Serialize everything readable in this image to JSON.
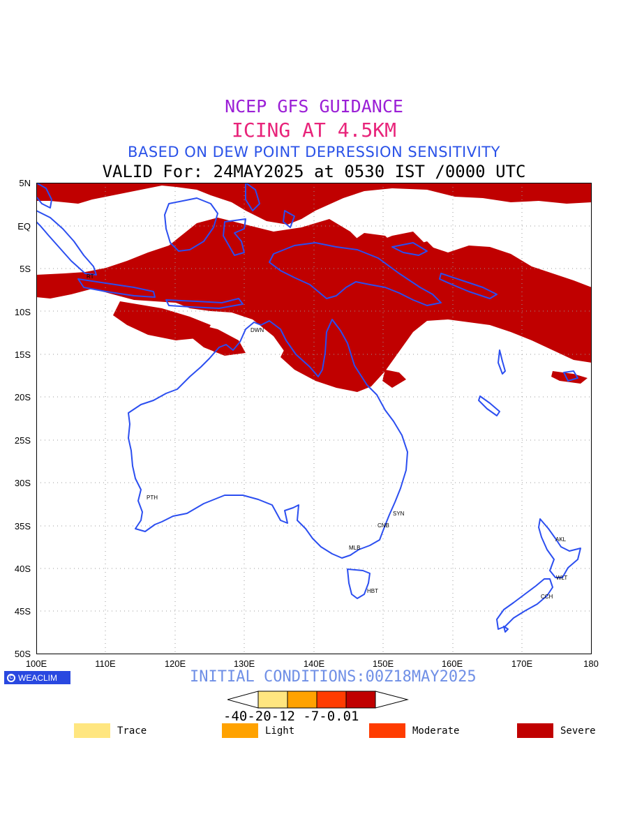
{
  "header": {
    "line1": "NCEP GFS GUIDANCE",
    "line2": "ICING AT 4.5KM",
    "line3": "BASED ON DEW POINT DEPRESSION SENSITIVITY",
    "line4": "VALID For: 24MAY2025 at 0530 IST /0000 UTC"
  },
  "axes": {
    "lat_labels": [
      "5N",
      "EQ",
      "5S",
      "10S",
      "15S",
      "20S",
      "25S",
      "30S",
      "35S",
      "40S",
      "45S",
      "50S"
    ],
    "lon_labels": [
      "100E",
      "110E",
      "120E",
      "130E",
      "140E",
      "150E",
      "160E",
      "170E",
      "180"
    ],
    "lat_range": [
      -50,
      5
    ],
    "lon_range": [
      100,
      180
    ],
    "grid": true
  },
  "cities": [
    {
      "code": "RT",
      "lon": 107.5,
      "lat": -6.2
    },
    {
      "code": "DWN",
      "lon": 130.9,
      "lat": -12.4
    },
    {
      "code": "PTH",
      "lon": 115.8,
      "lat": -31.9
    },
    {
      "code": "SYN",
      "lon": 151.2,
      "lat": -33.8
    },
    {
      "code": "CNB",
      "lon": 149.1,
      "lat": -35.3
    },
    {
      "code": "MLB",
      "lon": 144.9,
      "lat": -37.8
    },
    {
      "code": "HBT",
      "lon": 147.3,
      "lat": -42.9
    },
    {
      "code": "AKL",
      "lon": 174.8,
      "lat": -36.9
    },
    {
      "code": "WLT",
      "lon": 174.8,
      "lat": -41.3
    },
    {
      "code": "CCH",
      "lon": 172.6,
      "lat": -43.5
    }
  ],
  "footer": {
    "logo_text": "WEACLIM",
    "logo_symbol": "C",
    "initial_conditions": "INITIAL CONDITIONS:00Z18MAY2025"
  },
  "color_scale": {
    "labels": "-40-20-12 -7-0.01",
    "colors": [
      "#ffe680",
      "#ffa200",
      "#ff3c00",
      "#c00000"
    ]
  },
  "legend": [
    {
      "label": "Trace",
      "color": "#ffe680"
    },
    {
      "label": "Light",
      "color": "#ffa200"
    },
    {
      "label": "Moderate",
      "color": "#ff3c00"
    },
    {
      "label": "Severe",
      "color": "#c00000"
    }
  ],
  "colors": {
    "coastline": "#2b4ef0",
    "severe_icing": "#c00000",
    "grid": "#9a9a9a"
  }
}
